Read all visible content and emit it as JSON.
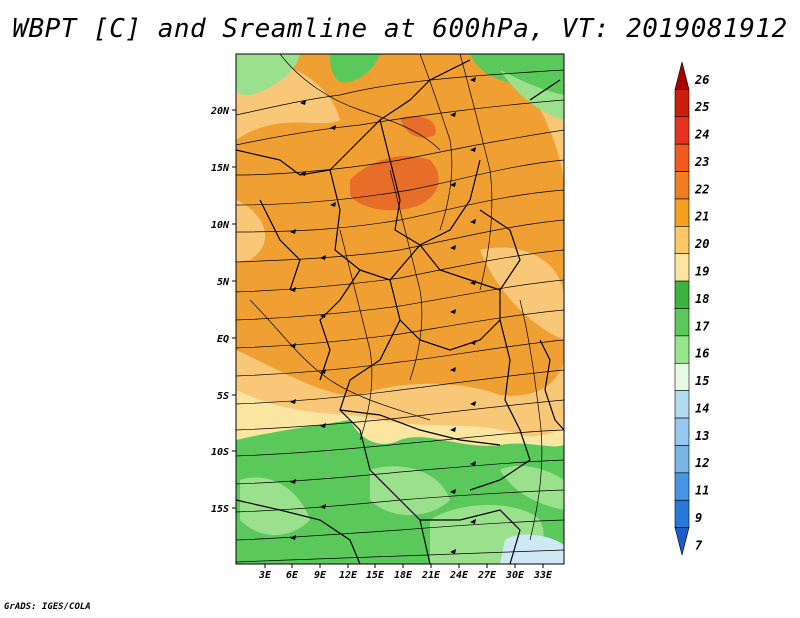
{
  "title": "WBPT [C] and Sreamline at 600hPa, VT: 2019081912",
  "credit": "GrADS: IGES/COLA",
  "map": {
    "lat_labels": [
      "20N",
      "15N",
      "10N",
      "5N",
      "EQ",
      "5S",
      "10S",
      "15S"
    ],
    "lon_labels": [
      "3E",
      "6E",
      "9E",
      "12E",
      "15E",
      "18E",
      "21E",
      "24E",
      "27E",
      "30E",
      "33E"
    ]
  },
  "colorbar": {
    "levels": [
      "26",
      "25",
      "24",
      "23",
      "22",
      "21",
      "20",
      "19",
      "18",
      "17",
      "16",
      "15",
      "14",
      "13",
      "12",
      "11",
      "9",
      "7"
    ],
    "colors": [
      "#a50000",
      "#c81e0a",
      "#e6321e",
      "#f05a1e",
      "#f07d1e",
      "#f5a01e",
      "#fac864",
      "#fae6a0",
      "#3cb43c",
      "#5ac85a",
      "#96e68c",
      "#e6fae6",
      "#b4dcf0",
      "#96c8f0",
      "#78b4e6",
      "#4696e6",
      "#2878dc",
      "#1e5ac8"
    ]
  },
  "legend_colors": {
    "orange": "#f0a032",
    "light_orange": "#f8c878",
    "red_orange": "#e66e28",
    "green": "#5ac85a",
    "light_green": "#9be08c",
    "pale_blue": "#cfe8f5"
  }
}
